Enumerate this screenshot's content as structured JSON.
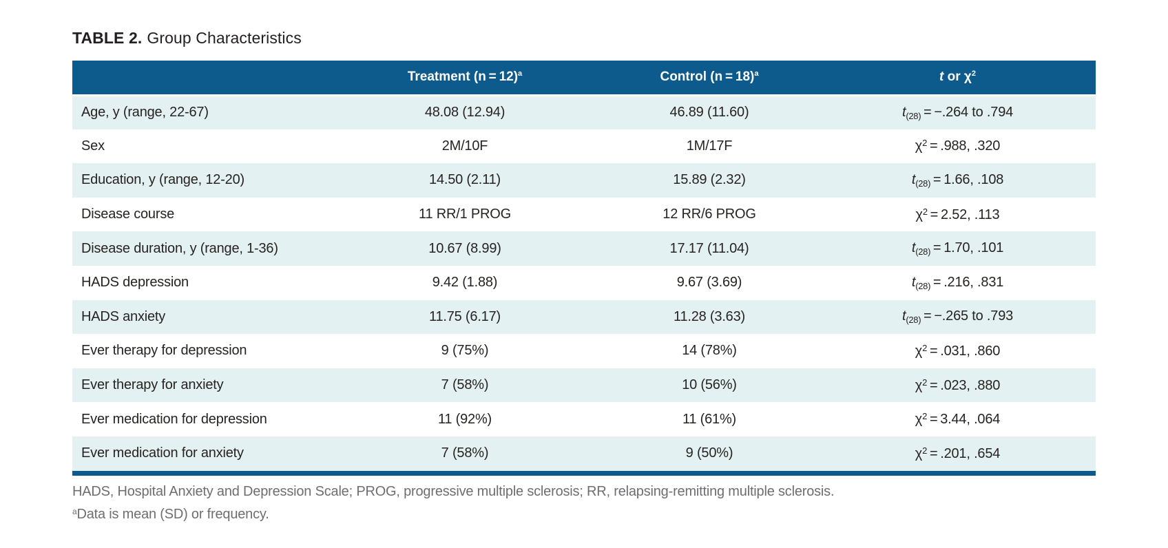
{
  "title": {
    "number": "TABLE 2.",
    "text": "Group Characteristics"
  },
  "colors": {
    "header_bg": "#0d5a8c",
    "stripe_bg": "#e4f1f2",
    "footnote": "#6d6e71",
    "text": "#231f20"
  },
  "table": {
    "columns": {
      "label": "",
      "treatment": {
        "label": "Treatment (n = 12)",
        "sup": "a"
      },
      "control": {
        "label": "Control (n = 18)",
        "sup": "a"
      },
      "stat": {
        "t": "t",
        "mid": " or ",
        "chi": "χ",
        "sup": "2"
      }
    },
    "rows": [
      {
        "label": "Age, y (range, 22-67)",
        "treatment": "48.08 (12.94)",
        "control": "46.89 (11.60)",
        "stat": {
          "symbol": "t",
          "script": "(28)",
          "pos": "sub",
          "rest": " = −.264 to .794"
        }
      },
      {
        "label": "Sex",
        "treatment": "2M/10F",
        "control": "1M/17F",
        "stat": {
          "symbol": "χ",
          "script": "2",
          "pos": "sup",
          "rest": " = .988, .320"
        }
      },
      {
        "label": "Education, y (range, 12-20)",
        "treatment": "14.50 (2.11)",
        "control": "15.89 (2.32)",
        "stat": {
          "symbol": "t",
          "script": "(28)",
          "pos": "sub",
          "rest": " = 1.66, .108"
        }
      },
      {
        "label": "Disease course",
        "treatment": "11 RR/1 PROG",
        "control": "12 RR/6 PROG",
        "stat": {
          "symbol": "χ",
          "script": "2",
          "pos": "sup",
          "rest": " = 2.52, .113"
        }
      },
      {
        "label": "Disease duration, y (range, 1-36)",
        "treatment": "10.67 (8.99)",
        "control": "17.17 (11.04)",
        "stat": {
          "symbol": "t",
          "script": "(28)",
          "pos": "sub",
          "rest": " = 1.70, .101"
        }
      },
      {
        "label": "HADS depression",
        "treatment": "9.42 (1.88)",
        "control": "9.67 (3.69)",
        "stat": {
          "symbol": "t",
          "script": "(28)",
          "pos": "sub",
          "rest": " = .216, .831"
        }
      },
      {
        "label": "HADS anxiety",
        "treatment": "11.75 (6.17)",
        "control": "11.28 (3.63)",
        "stat": {
          "symbol": "t",
          "script": "(28)",
          "pos": "sub",
          "rest": " = −.265 to .793"
        }
      },
      {
        "label": "Ever therapy for depression",
        "treatment": "9 (75%)",
        "control": "14 (78%)",
        "stat": {
          "symbol": "χ",
          "script": "2",
          "pos": "sup",
          "rest": " = .031, .860"
        }
      },
      {
        "label": "Ever therapy for anxiety",
        "treatment": "7 (58%)",
        "control": "10 (56%)",
        "stat": {
          "symbol": "χ",
          "script": "2",
          "pos": "sup",
          "rest": " = .023, .880"
        }
      },
      {
        "label": "Ever medication for depression",
        "treatment": "11 (92%)",
        "control": "11 (61%)",
        "stat": {
          "symbol": "χ",
          "script": "2",
          "pos": "sup",
          "rest": " = 3.44, .064"
        }
      },
      {
        "label": "Ever medication for anxiety",
        "treatment": "7 (58%)",
        "control": "9 (50%)",
        "stat": {
          "symbol": "χ",
          "script": "2",
          "pos": "sup",
          "rest": " = .201, .654"
        }
      }
    ]
  },
  "footnotes": {
    "line1": "HADS, Hospital Anxiety and Depression Scale; PROG, progressive multiple sclerosis; RR, relapsing-remitting multiple sclerosis.",
    "line2_sup": "a",
    "line2": "Data is mean (SD) or frequency."
  }
}
